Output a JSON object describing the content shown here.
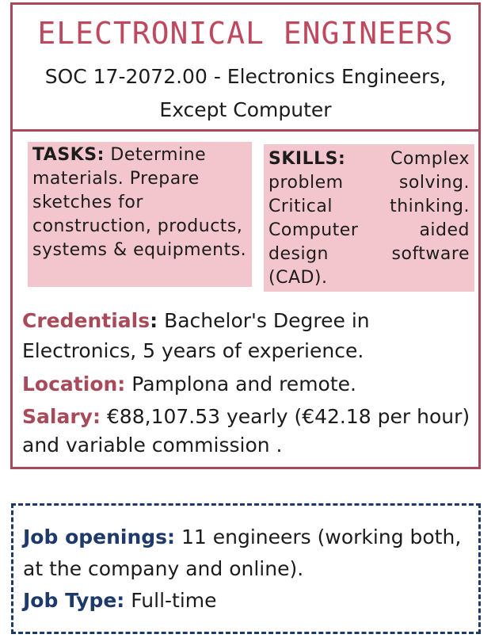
{
  "card": {
    "title": "ELECTRONICAL ENGINEERS",
    "subtitle": "SOC 17-2072.00 - Electronics Engineers, Except Computer",
    "tasks": {
      "label": "TASKS:",
      "text": "Determine materials. Prepare sketches for construction, products, systems & equipments."
    },
    "skills": {
      "label": "SKILLS:",
      "text": "Complex problem solving. Critical thinking. Computer aided design software (CAD)."
    },
    "credentials": {
      "label": "Credentials",
      "sep": ":",
      "text": "Bachelor's Degree in Electronics, 5 years of experience."
    },
    "location": {
      "label": "Location:",
      "text": "Pamplona and remote."
    },
    "salary": {
      "label": "Salary:",
      "text": "€88,107.53 yearly (€42.18 per hour) and variable commission ."
    }
  },
  "jobs": {
    "openings_label": "Job openings:",
    "openings_text": "11 engineers (working both, at the company and online).",
    "type_label": "Job Type:",
    "type_text": "Full-time"
  },
  "colors": {
    "accent": "#a84a5a",
    "title": "#c0485e",
    "box_fill": "#f2c6cc",
    "navy": "#1e3a6b"
  }
}
